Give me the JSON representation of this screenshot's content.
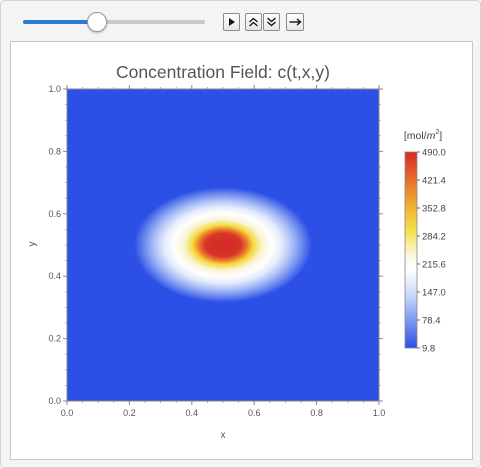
{
  "controls": {
    "slider_value": 0.4,
    "play_icon": "play-icon",
    "faster_icon": "double-chevron-up-icon",
    "slower_icon": "double-chevron-down-icon",
    "direction_icon": "arrow-right-icon"
  },
  "colors": {
    "slider_fill": "#2a7ad8",
    "field_background": "#2c4fe5"
  },
  "chart_data": {
    "type": "heatmap",
    "title": "Concentration Field: c(t,x,y)",
    "xlabel": "x",
    "ylabel": "y",
    "xlim": [
      0.0,
      1.0
    ],
    "ylim": [
      0.0,
      1.0
    ],
    "x_ticks": [
      "0.0",
      "0.2",
      "0.4",
      "0.6",
      "0.8",
      "1.0"
    ],
    "y_ticks": [
      "0.0",
      "0.2",
      "0.4",
      "0.6",
      "0.8",
      "1.0"
    ],
    "colorbar": {
      "unit_prefix": "[mol/",
      "unit_base": "m",
      "unit_exp": "2",
      "unit_suffix": "]",
      "range": [
        9.8,
        490.0
      ],
      "ticks": [
        "490.0",
        "421.4",
        "352.8",
        "284.2",
        "215.6",
        "147.0",
        "78.4",
        "9.8"
      ]
    },
    "field": {
      "center": [
        0.5,
        0.5
      ],
      "peak_value": 490.0,
      "background_value": 9.8,
      "visible_extent_x": [
        0.21,
        0.78
      ],
      "visible_extent_y": [
        0.32,
        0.69
      ]
    }
  }
}
